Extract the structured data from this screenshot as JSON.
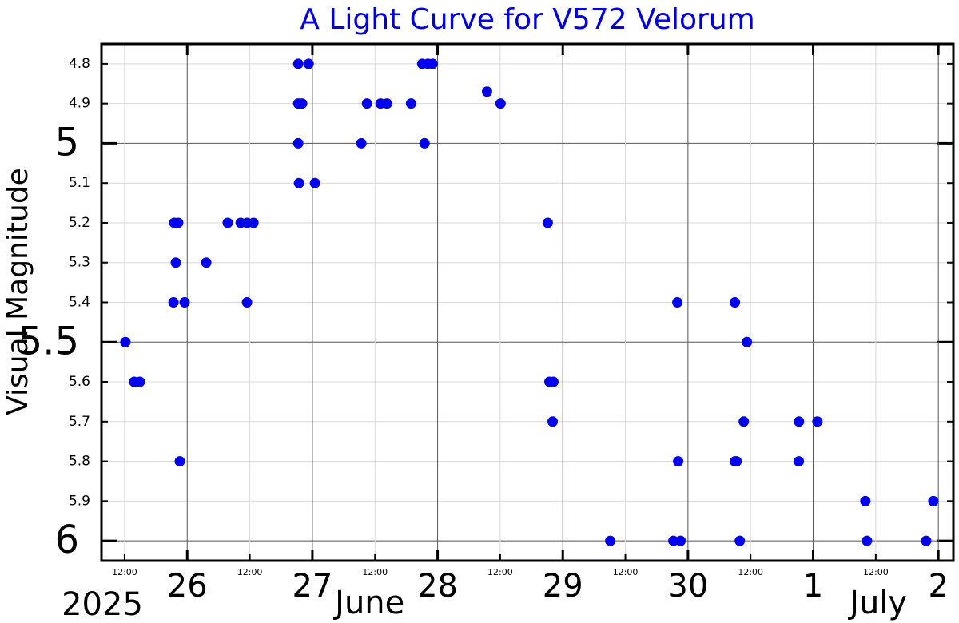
{
  "chart_data": {
    "type": "scatter",
    "title": "A Light Curve for V572 Velorum",
    "y_label": "Visual Magnitude",
    "title_color": "#0000dd",
    "y_inverted": true,
    "grid": true,
    "xlim": [
      "2025-06-25T07:34",
      "2025-07-02T02:53"
    ],
    "ylim": [
      4.75,
      6.05
    ],
    "yticks_major": [
      5,
      5.5,
      6
    ],
    "yticks_minor": [
      4.8,
      4.9,
      5.1,
      5.2,
      5.3,
      5.4,
      5.6,
      5.7,
      5.8,
      5.9
    ],
    "xticks_major": [
      {
        "value": "2025-06-26T00:00",
        "label": "26"
      },
      {
        "value": "2025-06-27T00:00",
        "label": "27"
      },
      {
        "value": "2025-06-28T00:00",
        "label": "28"
      },
      {
        "value": "2025-06-29T00:00",
        "label": "29"
      },
      {
        "value": "2025-06-30T00:00",
        "label": "30"
      },
      {
        "value": "2025-07-01T00:00",
        "label": "1"
      },
      {
        "value": "2025-07-02T00:00",
        "label": "2"
      }
    ],
    "xticks_minor": [
      {
        "value": "2025-06-25T12:00",
        "label": "12:00"
      },
      {
        "value": "2025-06-26T12:00",
        "label": "12:00"
      },
      {
        "value": "2025-06-27T12:00",
        "label": "12:00"
      },
      {
        "value": "2025-06-28T12:00",
        "label": "12:00"
      },
      {
        "value": "2025-06-29T12:00",
        "label": "12:00"
      },
      {
        "value": "2025-06-30T12:00",
        "label": "12:00"
      },
      {
        "value": "2025-07-01T12:00",
        "label": "12:00"
      }
    ],
    "year_label": "2025",
    "month_labels": [
      {
        "value": "2025-06-27T11:00",
        "label": "June"
      },
      {
        "value": "2025-07-01T12:30",
        "label": "July"
      }
    ],
    "series": [
      {
        "name": "V572 Vel",
        "color": "#0000ee",
        "x": [
          "2025-06-25T12:09",
          "2025-06-25T13:50",
          "2025-06-25T14:55",
          "2025-06-25T21:22",
          "2025-06-25T21:31",
          "2025-06-25T22:16",
          "2025-06-25T21:49",
          "2025-06-25T22:35",
          "2025-06-25T23:30",
          "2025-06-26T03:39",
          "2025-06-26T07:46",
          "2025-06-26T10:15",
          "2025-06-26T11:28",
          "2025-06-26T12:42",
          "2025-06-26T11:28",
          "2025-06-26T21:17",
          "2025-06-26T23:17",
          "2025-06-26T21:17",
          "2025-06-26T22:02",
          "2025-06-26T21:17",
          "2025-06-26T21:26",
          "2025-06-27T00:30",
          "2025-06-27T09:23",
          "2025-06-27T10:28",
          "2025-06-27T13:04",
          "2025-06-27T14:18",
          "2025-06-27T18:55",
          "2025-06-27T21:03",
          "2025-06-27T22:08",
          "2025-06-27T23:03",
          "2025-06-27T21:30",
          "2025-06-28T09:29",
          "2025-06-28T12:04",
          "2025-06-28T21:07",
          "2025-06-28T21:26",
          "2025-06-28T22:12",
          "2025-06-28T22:03",
          "2025-06-29T09:06",
          "2025-06-29T21:12",
          "2025-06-29T22:35",
          "2025-06-29T21:58",
          "2025-06-29T22:07",
          "2025-06-30T09:00",
          "2025-06-30T09:00",
          "2025-06-30T09:19",
          "2025-06-30T11:18",
          "2025-06-30T10:42",
          "2025-06-30T09:56",
          "2025-06-30T21:17",
          "2025-06-30T21:15",
          "2025-07-01T00:49",
          "2025-07-01T10:00",
          "2025-07-01T10:19",
          "2025-07-01T21:40",
          "2025-07-01T23:02"
        ],
        "values": [
          5.5,
          5.6,
          5.6,
          5.4,
          5.2,
          5.2,
          5.3,
          5.8,
          5.4,
          5.3,
          5.2,
          5.2,
          5.2,
          5.2,
          5.4,
          4.8,
          4.8,
          4.9,
          4.9,
          5.0,
          5.1,
          5.1,
          5.0,
          4.9,
          4.9,
          4.9,
          4.9,
          4.8,
          4.8,
          4.8,
          5.0,
          4.87,
          4.9,
          5.2,
          5.6,
          5.6,
          5.7,
          6.0,
          6.0,
          6.0,
          5.4,
          5.8,
          5.4,
          5.8,
          5.8,
          5.5,
          5.7,
          6.0,
          5.7,
          5.8,
          5.7,
          5.9,
          6.0,
          6.0,
          5.9
        ]
      }
    ]
  }
}
